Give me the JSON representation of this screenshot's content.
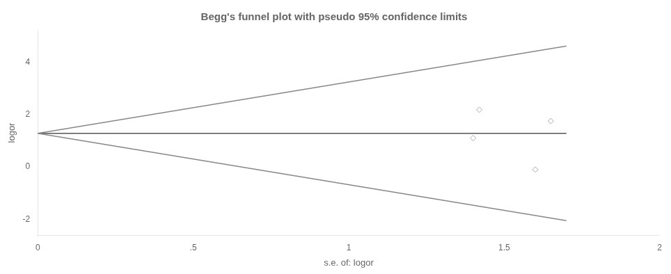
{
  "chart_data": {
    "type": "scatter",
    "title": "Begg's funnel plot with pseudo 95% confidence limits",
    "xlabel": "s.e. of: logor",
    "ylabel": "logor",
    "xlim": [
      0,
      2
    ],
    "ylim": [
      -2.6,
      5.2
    ],
    "xticks": [
      0,
      {
        "value": 0.5,
        "label": ".5"
      },
      1,
      1.5,
      2
    ],
    "yticks": [
      -2,
      0,
      2,
      4
    ],
    "grid": false,
    "series": [
      {
        "type": "line",
        "color": "#888888",
        "x": [
          0,
          1.7
        ],
        "values": [
          1.28,
          4.612
        ]
      },
      {
        "type": "line",
        "color": "#888888",
        "x": [
          0,
          1.7
        ],
        "values": [
          1.28,
          -2.052
        ]
      },
      {
        "type": "line",
        "color": "#555555",
        "x": [
          0,
          1.7
        ],
        "values": [
          1.28,
          1.28
        ]
      },
      {
        "type": "scatter",
        "marker": "diamond",
        "color": "#aaaaaa",
        "x": [
          1.42,
          1.65,
          1.4,
          1.6
        ],
        "values": [
          2.18,
          1.75,
          1.1,
          -0.1
        ]
      }
    ]
  }
}
